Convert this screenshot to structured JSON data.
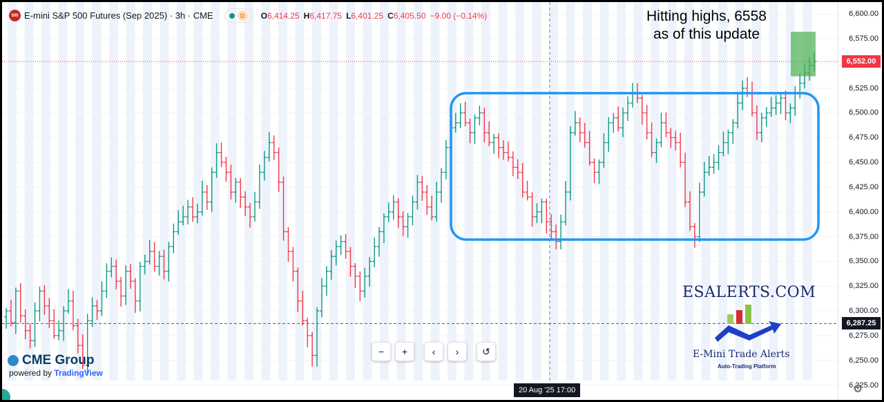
{
  "header": {
    "symbol_badge": "500",
    "title": "E-mini S&P 500 Futures (Sep 2025) · 3h · CME",
    "delay_badge": "D",
    "ohlc": {
      "o_label": "O",
      "o": "6,414.25",
      "h_label": "H",
      "h": "6,417.75",
      "l_label": "L",
      "l": "6,401.25",
      "c_label": "C",
      "c": "6,405.50",
      "change": "−9.00 (−0.14%)"
    }
  },
  "annotation": {
    "line1": "Hitting highs, 6558",
    "line2": "as of this update"
  },
  "axis": {
    "price_tag_current": "6,552.00",
    "price_tag_dashed": "6,287.25",
    "crosshair_time": "20 Aug '25   17:00"
  },
  "toolbar": {
    "zoom_out": "−",
    "zoom_in": "+",
    "scroll_left": "‹",
    "scroll_right": "›",
    "reset": "↺"
  },
  "branding": {
    "cme": "CME Group",
    "powered_prefix": "powered by",
    "powered_brand": "TradingView",
    "esalerts": "ESALERTS.COM",
    "trade_alerts": "E-Mini Trade Alerts",
    "trade_alerts_sub": "Auto-Trading Platform"
  },
  "colors": {
    "up": "#089981",
    "down": "#f23645",
    "range_box": "#2196f3",
    "highlight": "#4caf50",
    "session_shade": "#eef3fb"
  },
  "chart_data": {
    "type": "ohlc-bar",
    "title": "E-mini S&P 500 Futures (Sep 2025) · 3h · CME",
    "ylim": [
      6210,
      6612
    ],
    "y_ticks": [
      6225,
      6250,
      6275,
      6300,
      6325,
      6350,
      6375,
      6400,
      6425,
      6450,
      6475,
      6500,
      6525,
      6550,
      6575,
      6600
    ],
    "y_tick_labels": [
      "6,225.00",
      "6,250.00",
      "6,275.00",
      "6,300.00",
      "6,325.00",
      "6,350.00",
      "6,375.00",
      "6,400.00",
      "6,425.00",
      "6,450.00",
      "6,475.00",
      "6,500.00",
      "6,525.00",
      "6,550.00",
      "6,575.00",
      "6,600.00"
    ],
    "closes": [
      6300,
      6288,
      6320,
      6295,
      6280,
      6270,
      6300,
      6320,
      6305,
      6290,
      6275,
      6280,
      6300,
      6310,
      6285,
      6265,
      6245,
      6290,
      6305,
      6300,
      6320,
      6340,
      6345,
      6330,
      6315,
      6340,
      6330,
      6310,
      6345,
      6350,
      6360,
      6345,
      6355,
      6340,
      6365,
      6380,
      6390,
      6395,
      6405,
      6395,
      6400,
      6420,
      6410,
      6440,
      6460,
      6450,
      6440,
      6420,
      6430,
      6415,
      6405,
      6395,
      6410,
      6440,
      6455,
      6470,
      6460,
      6430,
      6380,
      6360,
      6340,
      6310,
      6290,
      6275,
      6255,
      6300,
      6325,
      6340,
      6355,
      6365,
      6370,
      6360,
      6345,
      6335,
      6320,
      6335,
      6350,
      6365,
      6380,
      6395,
      6400,
      6410,
      6395,
      6385,
      6395,
      6410,
      6430,
      6420,
      6405,
      6395,
      6420,
      6440,
      6465,
      6485,
      6490,
      6500,
      6490,
      6480,
      6495,
      6500,
      6480,
      6470,
      6475,
      6465,
      6460,
      6455,
      6445,
      6440,
      6420,
      6415,
      6395,
      6400,
      6410,
      6390,
      6380,
      6370,
      6390,
      6420,
      6480,
      6490,
      6480,
      6470,
      6450,
      6440,
      6450,
      6470,
      6490,
      6495,
      6485,
      6500,
      6510,
      6520,
      6515,
      6500,
      6480,
      6460,
      6470,
      6490,
      6480,
      6475,
      6470,
      6450,
      6410,
      6385,
      6375,
      6420,
      6440,
      6445,
      6450,
      6460,
      6470,
      6480,
      6490,
      6510,
      6525,
      6520,
      6500,
      6480,
      6495,
      6500,
      6505,
      6510,
      6515,
      6500,
      6505,
      6520,
      6530,
      6540,
      6548,
      6552
    ],
    "range_box": {
      "low": 6372,
      "high": 6520,
      "label": ""
    },
    "highlight_zone": {
      "low": 6537,
      "high": 6582,
      "label": ""
    },
    "lines": [
      {
        "price": 6552,
        "style": "dotted",
        "color": "#f23645"
      },
      {
        "price": 6287.25,
        "style": "dashed",
        "color": "#555555"
      }
    ],
    "grid": true,
    "legend": "none"
  }
}
